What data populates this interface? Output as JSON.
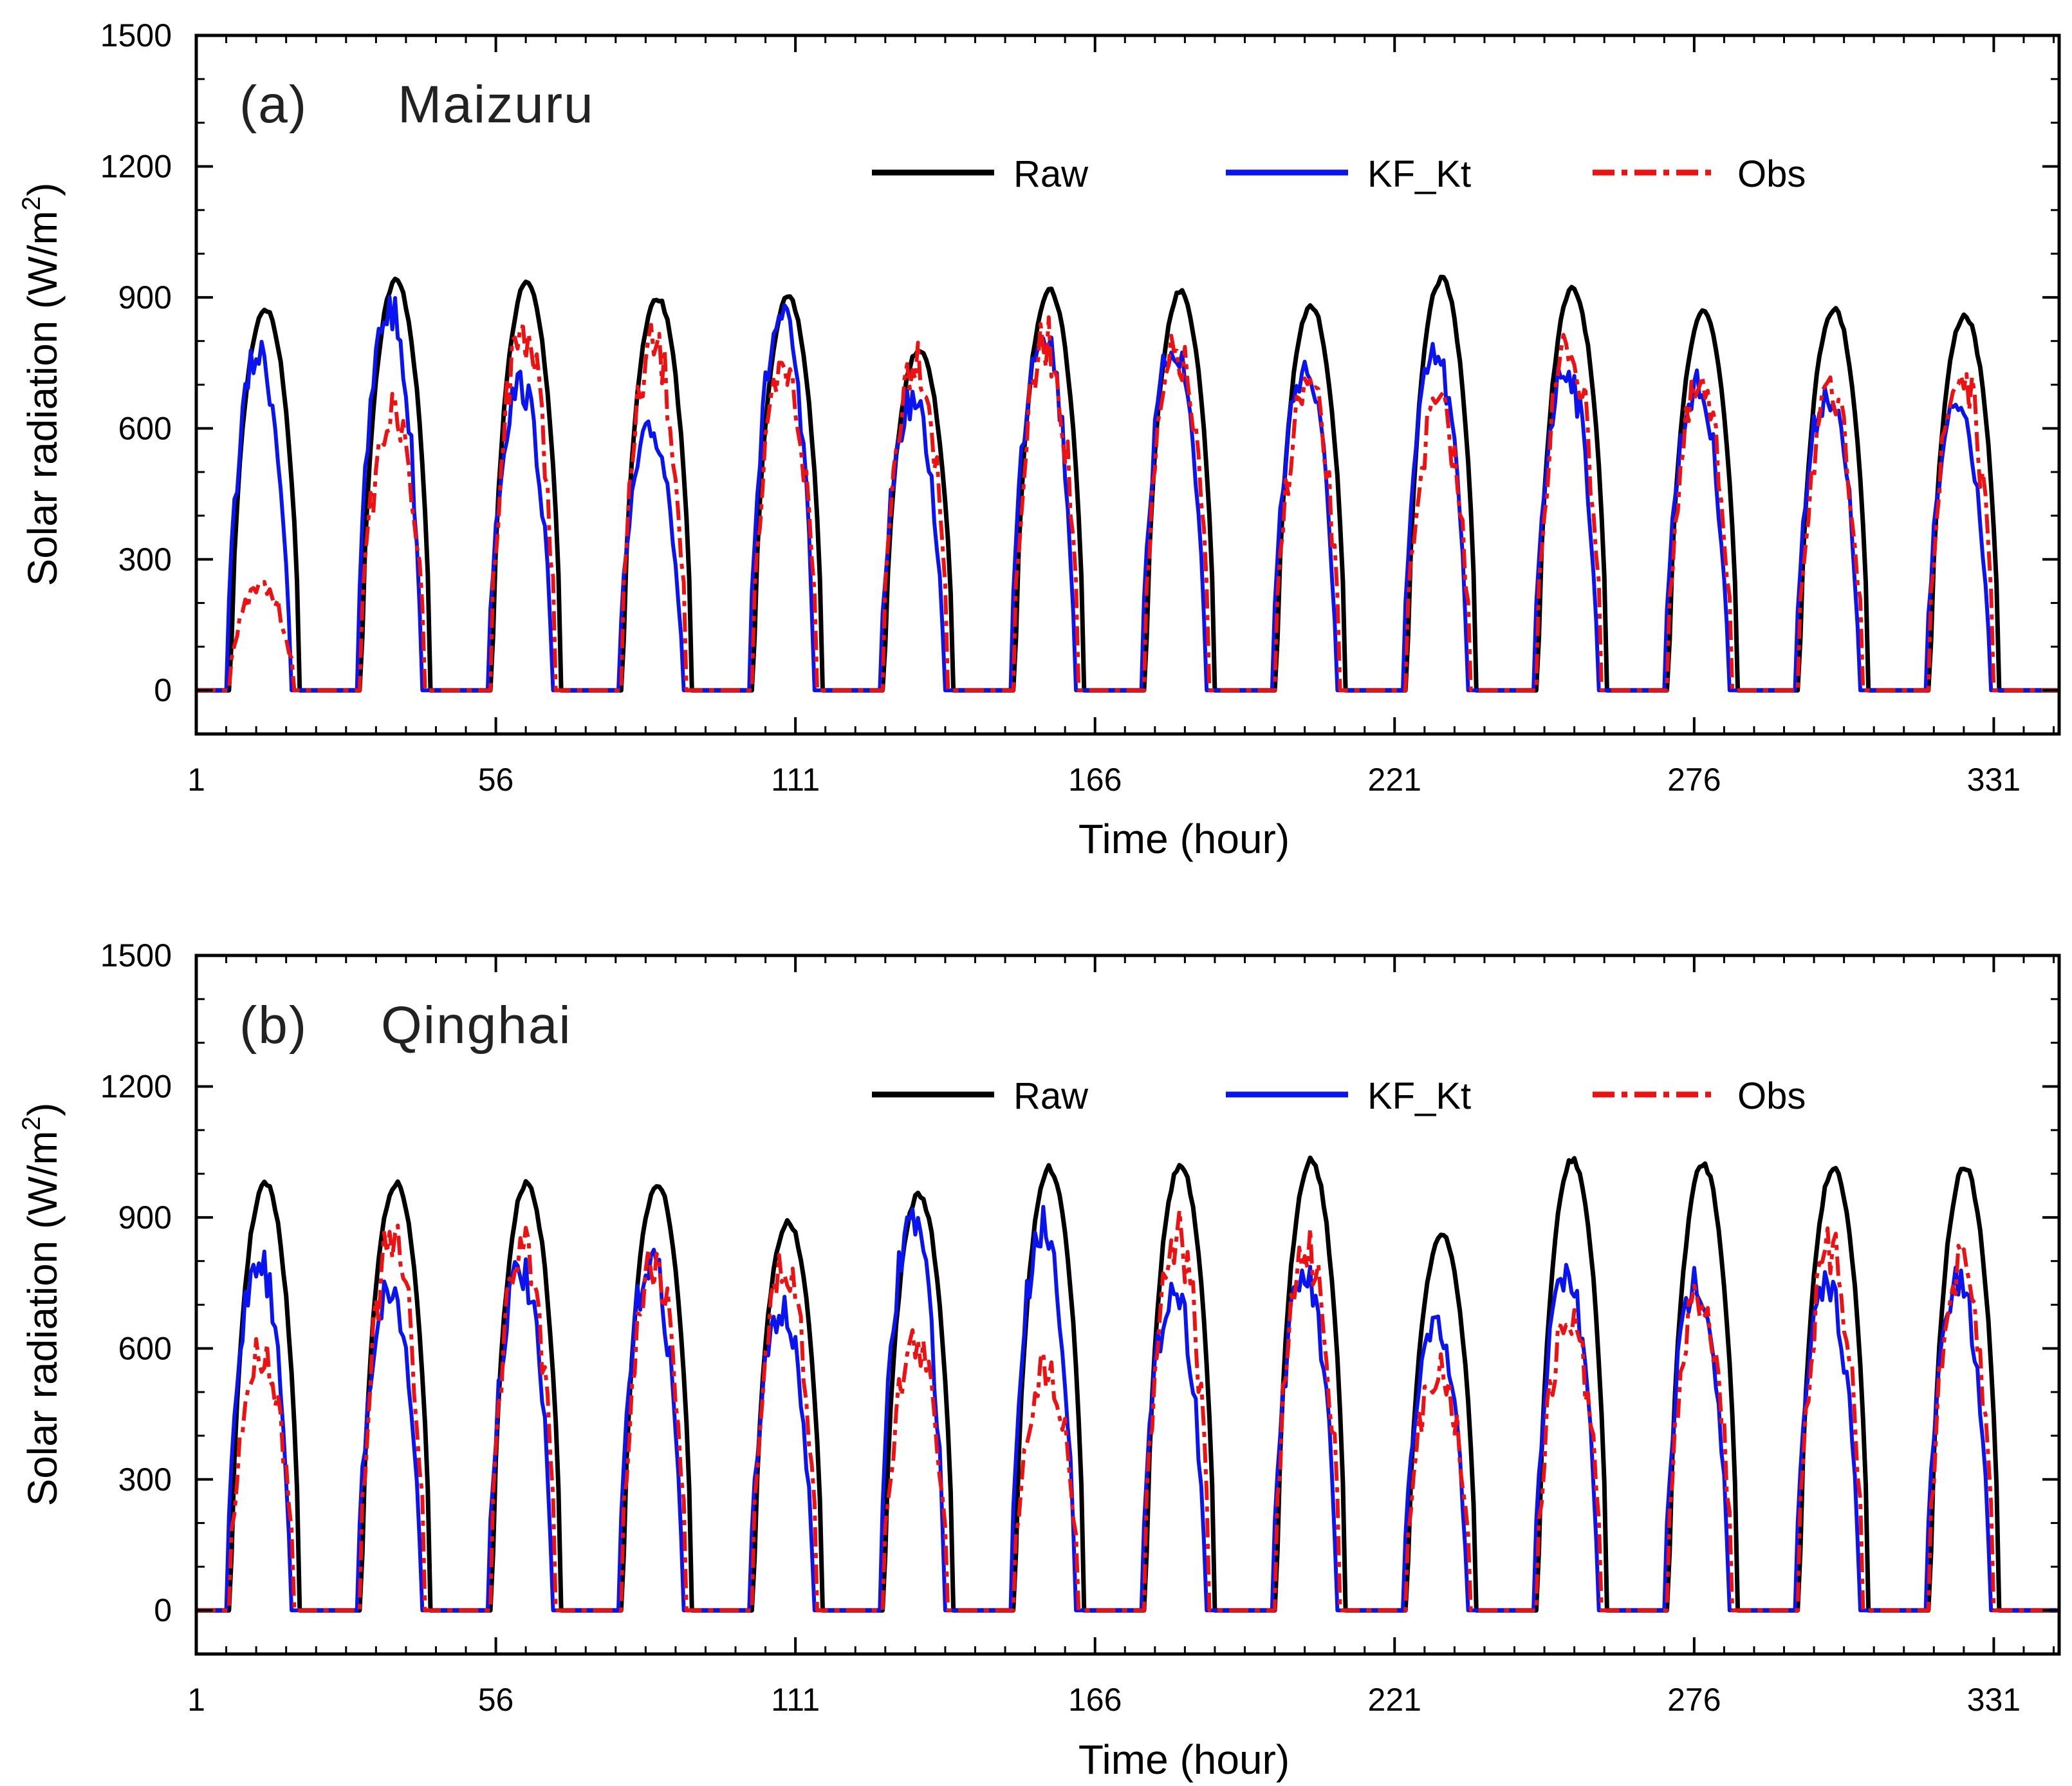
{
  "chart_data": [
    {
      "type": "line",
      "panel": "(a)",
      "station": "Maizuru",
      "xlabel": "Time (hour)",
      "ylabel": "Solar radiation (W/m",
      "ylabel_sup": "2",
      "ylabel_close": ")",
      "xlim": [
        1,
        343
      ],
      "ylim": [
        -100,
        1500
      ],
      "xticks": [
        1,
        56,
        111,
        166,
        221,
        276,
        331
      ],
      "yticks": [
        0,
        300,
        600,
        900,
        1200,
        1500
      ],
      "legend": [
        "Raw",
        "KF_Kt",
        "Obs"
      ],
      "colors": {
        "Raw": "#000000",
        "KF_Kt": "#0a14f0",
        "Obs": "#ee1111"
      },
      "day_starts": [
        7,
        31,
        55,
        79,
        103,
        127,
        151,
        175,
        199,
        223,
        247,
        271,
        295,
        319
      ],
      "series": [
        {
          "name": "Raw",
          "peaks": [
            880,
            945,
            940,
            905,
            905,
            785,
            925,
            920,
            885,
            950,
            925,
            875,
            880,
            865
          ]
        },
        {
          "name": "KF_Kt",
          "peaks": [
            815,
            925,
            740,
            625,
            900,
            700,
            880,
            835,
            780,
            805,
            785,
            735,
            720,
            690
          ]
        },
        {
          "name": "Obs",
          "peaks": [
            255,
            680,
            895,
            850,
            780,
            830,
            860,
            830,
            750,
            700,
            850,
            740,
            720,
            780
          ]
        }
      ]
    },
    {
      "type": "line",
      "panel": "(b)",
      "station": "Qinghai",
      "xlabel": "Time (hour)",
      "ylabel": "Solar radiation (W/m",
      "ylabel_sup": "2",
      "ylabel_close": ")",
      "xlim": [
        1,
        343
      ],
      "ylim": [
        -100,
        1500
      ],
      "xticks": [
        1,
        56,
        111,
        166,
        221,
        276,
        331
      ],
      "yticks": [
        0,
        300,
        600,
        900,
        1200,
        1500
      ],
      "legend": [
        "Raw",
        "KF_Kt",
        "Obs"
      ],
      "colors": {
        "Raw": "#000000",
        "KF_Kt": "#0a14f0",
        "Obs": "#ee1111"
      },
      "day_starts": [
        7,
        31,
        55,
        79,
        103,
        127,
        151,
        175,
        199,
        223,
        247,
        271,
        295,
        319
      ],
      "series": [
        {
          "name": "Raw",
          "peaks": [
            985,
            985,
            985,
            985,
            895,
            960,
            1020,
            1025,
            1040,
            865,
            1040,
            1030,
            1020,
            1020
          ]
        },
        {
          "name": "KF_Kt",
          "peaks": [
            855,
            780,
            825,
            850,
            725,
            950,
            935,
            780,
            810,
            680,
            810,
            800,
            790,
            790
          ]
        },
        {
          "name": "Obs",
          "peaks": [
            640,
            905,
            905,
            870,
            850,
            660,
            600,
            930,
            900,
            600,
            720,
            780,
            880,
            840
          ]
        }
      ]
    }
  ]
}
